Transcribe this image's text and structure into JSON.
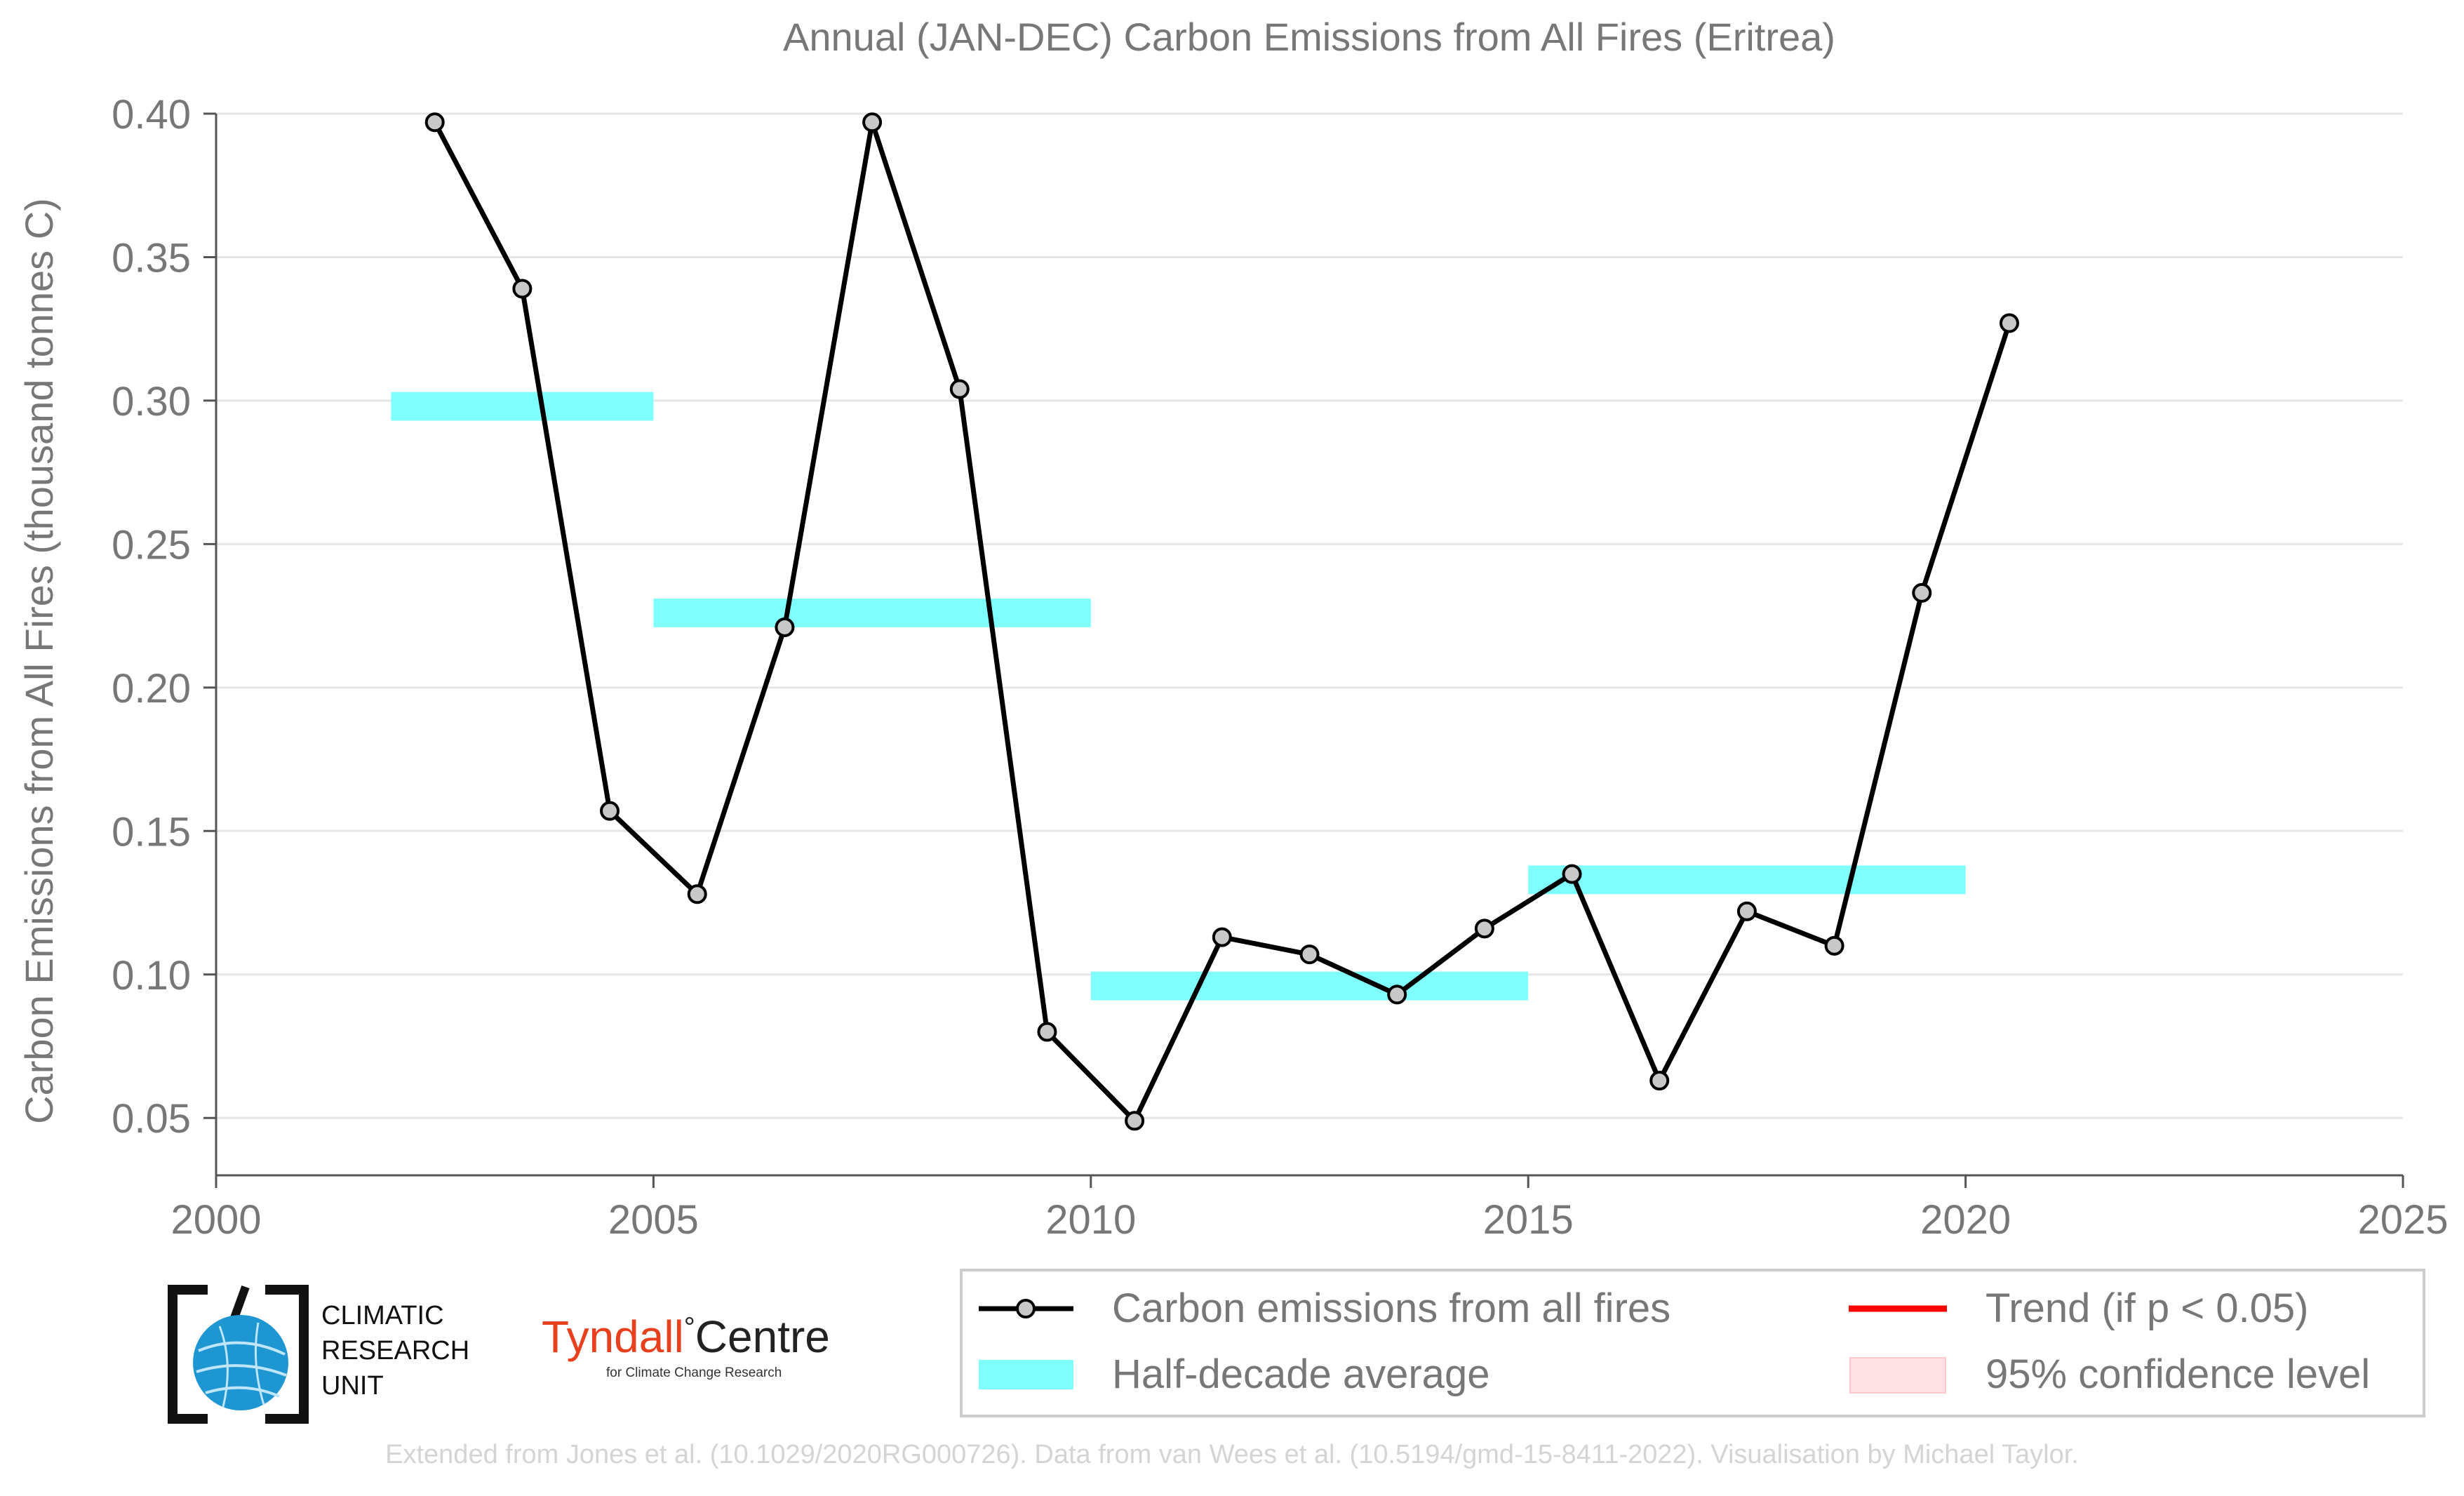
{
  "chart_data": {
    "type": "line",
    "title": "Annual (JAN-DEC) Carbon Emissions from All Fires (Eritrea)",
    "xlabel": "",
    "ylabel": "Carbon Emissions from All Fires (thousand tonnes C)",
    "xlim": [
      2000,
      2025
    ],
    "ylim": [
      0.03,
      0.4
    ],
    "x_ticks": [
      "2000",
      "2005",
      "2010",
      "2015",
      "2020",
      "2025"
    ],
    "y_ticks": [
      "0.05",
      "0.10",
      "0.15",
      "0.20",
      "0.25",
      "0.30",
      "0.35",
      "0.40"
    ],
    "grid": "horizontal",
    "series": [
      {
        "name": "Carbon emissions from all fires",
        "color": "#000000",
        "marker_fill": "#c8c8c8",
        "x": [
          2002.5,
          2003.5,
          2004.5,
          2005.5,
          2006.5,
          2007.5,
          2008.5,
          2009.5,
          2010.5,
          2011.5,
          2012.5,
          2013.5,
          2014.5,
          2015.5,
          2016.5,
          2017.5,
          2018.5,
          2019.5,
          2020.5
        ],
        "y": [
          0.397,
          0.339,
          0.157,
          0.128,
          0.221,
          0.397,
          0.304,
          0.08,
          0.049,
          0.113,
          0.107,
          0.093,
          0.116,
          0.135,
          0.063,
          0.122,
          0.11,
          0.233,
          0.327
        ]
      }
    ],
    "half_decade_averages": {
      "name": "Half-decade average",
      "color": "#80ffff",
      "bars": [
        {
          "x0": 2002,
          "x1": 2005,
          "y": 0.298
        },
        {
          "x0": 2005,
          "x1": 2010,
          "y": 0.226
        },
        {
          "x0": 2010,
          "x1": 2015,
          "y": 0.096
        },
        {
          "x0": 2015,
          "x1": 2020,
          "y": 0.133
        }
      ]
    },
    "legend": {
      "placement": "bottom-right",
      "items": [
        {
          "label": "Carbon emissions from all fires",
          "kind": "line-marker",
          "color": "#000000"
        },
        {
          "label": "Trend (if p < 0.05)",
          "kind": "line",
          "color": "#ff0000"
        },
        {
          "label": "Half-decade average",
          "kind": "patch",
          "color": "#80ffff"
        },
        {
          "label": "95% confidence level",
          "kind": "patch",
          "color": "#ffe0e3"
        }
      ]
    }
  },
  "logos": {
    "cru": {
      "lines": [
        "CLIMATIC",
        "RESEARCH",
        "UNIT"
      ]
    },
    "tyndall": {
      "name": "Tyndall",
      "degree": "°",
      "centre": "Centre",
      "subtitle": "for Climate Change Research"
    }
  },
  "footer": "Extended from Jones et al. (10.1029/2020RG000726). Data from van Wees et al. (10.5194/gmd-15-8411-2022). Visualisation by Michael Taylor."
}
